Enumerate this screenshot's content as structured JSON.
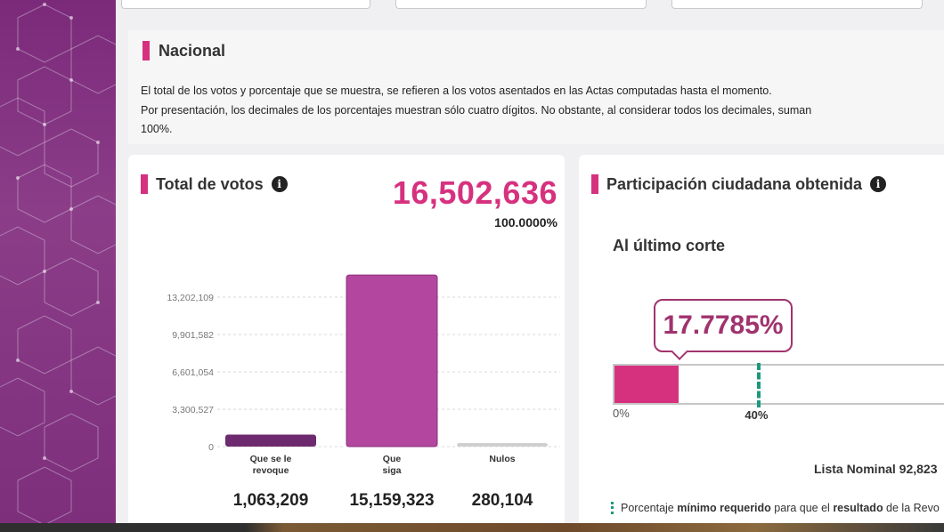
{
  "header": {
    "title": "Nacional",
    "text_line1": "El total de los votos y porcentaje que se muestra, se refieren a los votos asentados en las Actas computadas hasta el momento.",
    "text_line2": "Por presentación, los decimales de los porcentajes muestran sólo cuatro dígitos. No obstante, al considerar todos los decimales, suman 100%."
  },
  "votos": {
    "title": "Total de votos",
    "total": "16,502,636",
    "total_pct": "100.0000%",
    "info_icon": "i"
  },
  "chart_data": {
    "type": "bar",
    "categories": [
      "Que se le revoque",
      "Que siga",
      "Nulos"
    ],
    "category_lines": [
      [
        "Que se le",
        "revoque"
      ],
      [
        "Que",
        "siga"
      ],
      [
        "Nulos"
      ]
    ],
    "values": [
      1063209,
      15159323,
      280104
    ],
    "value_labels": [
      "1,063,209",
      "15,159,323",
      "280,104"
    ],
    "yticks": [
      0,
      3300527,
      6601054,
      9901582,
      13202109
    ],
    "ytick_labels": [
      "0",
      "3,300,527",
      "6,601,054",
      "9,901,582",
      "13,202,109"
    ],
    "ylim": [
      0,
      16502636
    ],
    "colors": [
      "#6e2a6e",
      "#b3479f",
      "#cfcfcf"
    ],
    "grid": true
  },
  "participacion": {
    "title": "Participación ciudadana obtenida",
    "info_icon": "i",
    "subtitle": "Al último corte",
    "percent_label": "17.7785%",
    "percent_value": 17.7785,
    "bar_max_percent": 100,
    "threshold_percent": 40,
    "zero_label": "0%",
    "threshold_label": "40%",
    "lista_nominal": "Lista Nominal 92,823",
    "nota_prefix": "Porcentaje ",
    "nota_bold1": "mínimo requerido",
    "nota_mid": " para que el ",
    "nota_bold2": "resultado",
    "nota_suffix": " de la Revo",
    "fill_color": "#d6317f",
    "threshold_color": "#1a9a7e"
  }
}
